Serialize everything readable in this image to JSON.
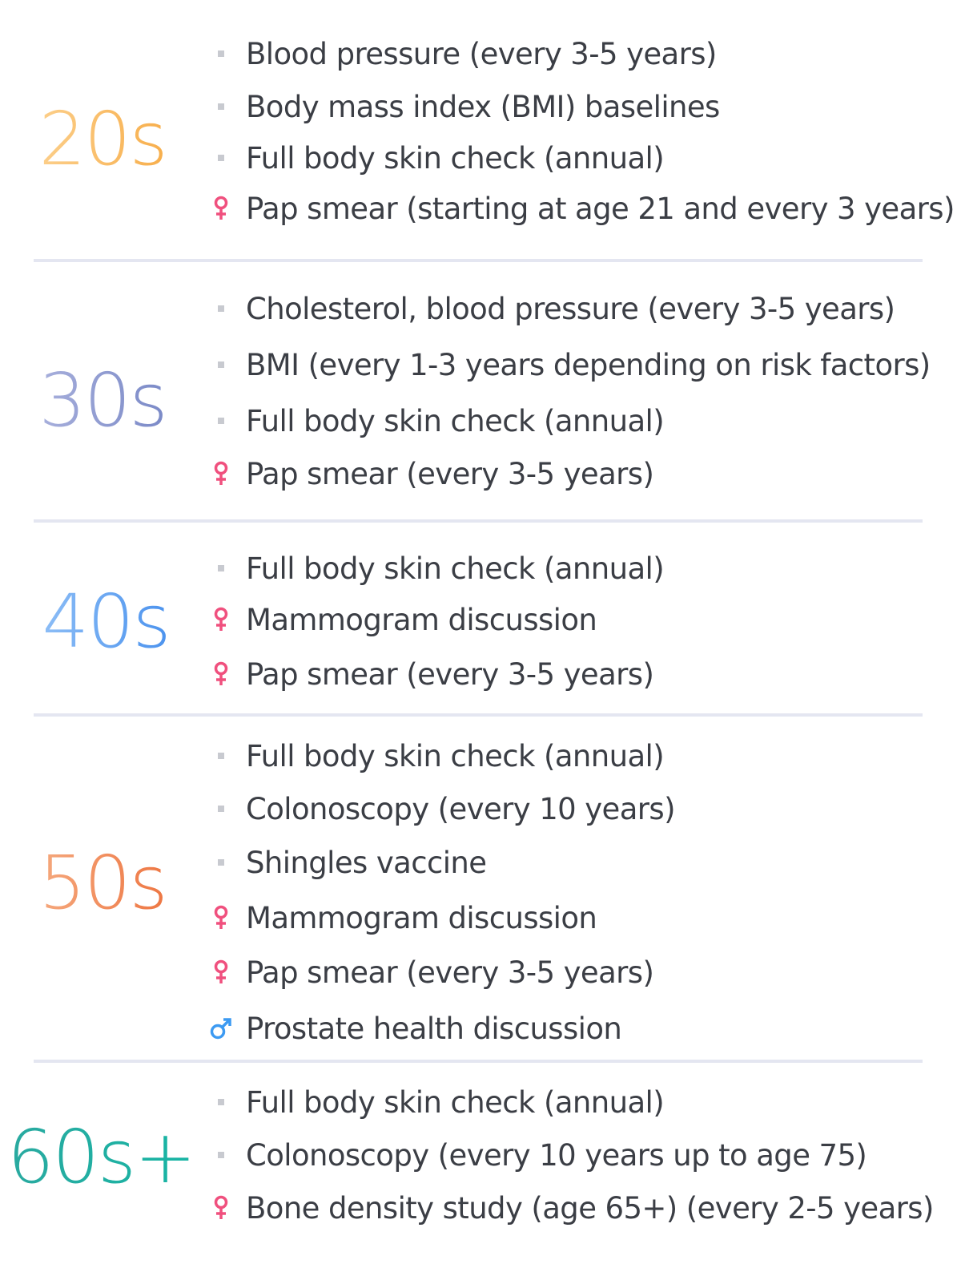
{
  "colors": {
    "bullet": "#c8cad0",
    "female": "#f0507e",
    "male": "#3c9af2",
    "divider": "#e4e6f1",
    "text": "#3b3e45"
  },
  "sections": [
    {
      "age": "20s",
      "items": [
        {
          "icon": "bullet",
          "text": "Blood pressure (every 3-5 years)"
        },
        {
          "icon": "bullet",
          "text": "Body mass index (BMI) baselines"
        },
        {
          "icon": "bullet",
          "text": "Full body skin check (annual)"
        },
        {
          "icon": "female",
          "text": "Pap smear (starting at age 21 and every 3 years)"
        }
      ]
    },
    {
      "age": "30s",
      "items": [
        {
          "icon": "bullet",
          "text": "Cholesterol, blood pressure (every 3-5 years)"
        },
        {
          "icon": "bullet",
          "text": "BMI (every 1-3 years depending on risk factors)"
        },
        {
          "icon": "bullet",
          "text": "Full body skin check (annual)"
        },
        {
          "icon": "female",
          "text": "Pap smear (every 3-5 years)"
        }
      ]
    },
    {
      "age": "40s",
      "items": [
        {
          "icon": "bullet",
          "text": "Full body skin check (annual)"
        },
        {
          "icon": "female",
          "text": "Mammogram discussion"
        },
        {
          "icon": "female",
          "text": "Pap smear (every 3-5 years)"
        }
      ]
    },
    {
      "age": "50s",
      "items": [
        {
          "icon": "bullet",
          "text": "Full body skin check (annual)"
        },
        {
          "icon": "bullet",
          "text": "Colonoscopy (every 10 years)"
        },
        {
          "icon": "bullet",
          "text": "Shingles vaccine"
        },
        {
          "icon": "female",
          "text": "Mammogram discussion"
        },
        {
          "icon": "female",
          "text": "Pap smear (every 3-5 years)"
        },
        {
          "icon": "male",
          "text": "Prostate health discussion"
        }
      ]
    },
    {
      "age": "60s+",
      "items": [
        {
          "icon": "bullet",
          "text": "Full body skin check (annual)"
        },
        {
          "icon": "bullet",
          "text": "Colonoscopy (every 10 years up to age 75)"
        },
        {
          "icon": "female",
          "text": "Bone density study (age 65+) (every 2-5 years)"
        }
      ]
    }
  ]
}
